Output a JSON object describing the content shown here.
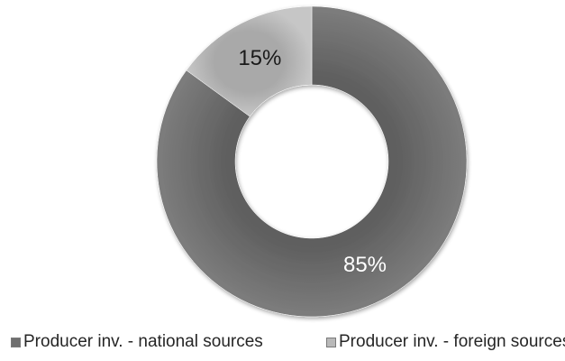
{
  "chart_data": {
    "type": "pie",
    "variant": "donut",
    "title": "",
    "slices": [
      {
        "label": "Producer inv. - national sources",
        "value": 85,
        "value_label": "85%",
        "color": "#6f6f6f"
      },
      {
        "label": "Producer inv. - foreign sources",
        "value": 15,
        "value_label": "15%",
        "color": "#b9b9b9"
      }
    ],
    "legend_position": "bottom",
    "style": "3d-shaded-grayscale"
  }
}
